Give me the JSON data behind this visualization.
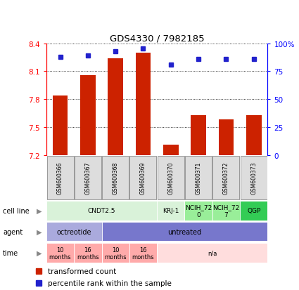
{
  "title": "GDS4330 / 7982185",
  "samples": [
    "GSM600366",
    "GSM600367",
    "GSM600368",
    "GSM600369",
    "GSM600370",
    "GSM600371",
    "GSM600372",
    "GSM600373"
  ],
  "bar_values": [
    7.84,
    8.06,
    8.24,
    8.3,
    7.31,
    7.63,
    7.58,
    7.63
  ],
  "percentile_values": [
    88,
    89,
    93,
    95,
    81,
    86,
    86,
    86
  ],
  "ylim_left": [
    7.2,
    8.4
  ],
  "yticks_left": [
    7.2,
    7.5,
    7.8,
    8.1,
    8.4
  ],
  "ylim_right": [
    0,
    100
  ],
  "yticks_right": [
    0,
    25,
    50,
    75,
    100
  ],
  "bar_color": "#cc2200",
  "dot_color": "#2222cc",
  "bar_bottom": 7.2,
  "cell_line_data": [
    [
      0,
      4,
      "CNDT2.5",
      "#d9f2d9"
    ],
    [
      4,
      5,
      "KRJ-1",
      "#d9f2d9"
    ],
    [
      5,
      6,
      "NCIH_72\n0",
      "#99ee99"
    ],
    [
      6,
      7,
      "NCIH_72\n7",
      "#99ee99"
    ],
    [
      7,
      8,
      "QGP",
      "#33cc55"
    ]
  ],
  "agent_data": [
    [
      0,
      2,
      "octreotide",
      "#aaaadd"
    ],
    [
      2,
      8,
      "untreated",
      "#7777cc"
    ]
  ],
  "time_data": [
    [
      0,
      1,
      "10\nmonths",
      "#ffaaaa"
    ],
    [
      1,
      2,
      "16\nmonths",
      "#ffaaaa"
    ],
    [
      2,
      3,
      "10\nmonths",
      "#ffaaaa"
    ],
    [
      3,
      4,
      "16\nmonths",
      "#ffaaaa"
    ],
    [
      4,
      8,
      "n/a",
      "#ffdddd"
    ]
  ],
  "row_labels": [
    "cell line",
    "agent",
    "time"
  ],
  "legend_bar_label": "transformed count",
  "legend_dot_label": "percentile rank within the sample",
  "n_samples": 8
}
